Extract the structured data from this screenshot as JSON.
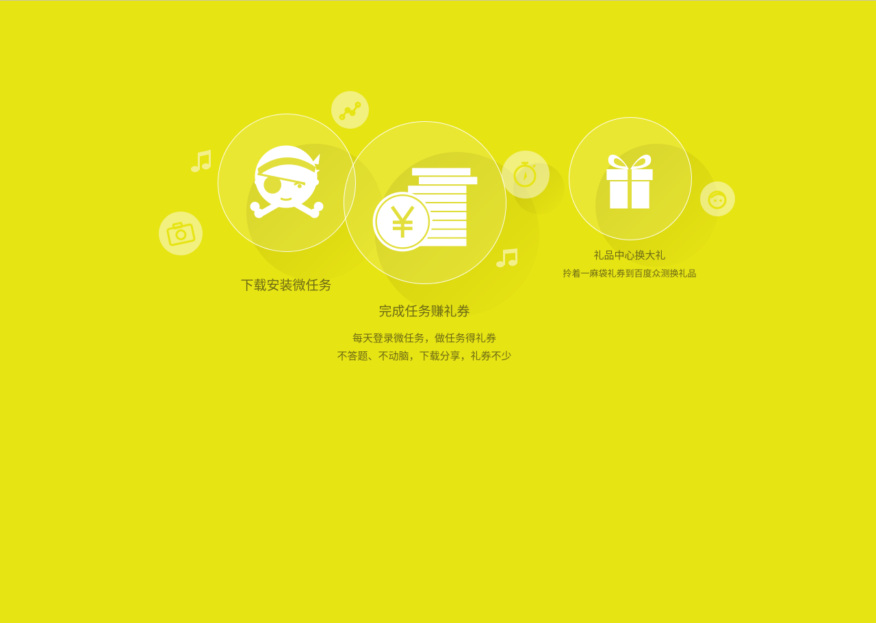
{
  "features": {
    "download": {
      "title": "下载安装微任务",
      "icon": "pirate-icon"
    },
    "earn": {
      "title": "完成任务赚礼券",
      "line1": "每天登录微任务，做任务得礼券",
      "line2": "不答题、不动脑，下载分享，礼券不少",
      "icon": "yen-coins-icon"
    },
    "gift": {
      "title": "礼品中心换大礼",
      "desc": "拎着一麻袋礼券到百度众测换礼品",
      "icon": "gift-box-icon"
    }
  },
  "decorations": [
    "camera-icon",
    "music-note-icon",
    "chart-line-icon",
    "stopwatch-icon",
    "music-note-icon",
    "face-icon"
  ],
  "colors": {
    "background": "#e7e414",
    "text": "#6b6a14",
    "circle_border": "#ffffff"
  }
}
